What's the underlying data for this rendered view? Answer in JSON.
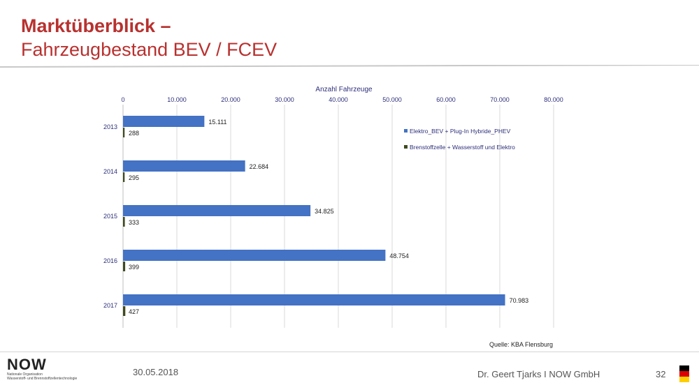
{
  "slide": {
    "title_line1": "Marktüberblick –",
    "title_line2": "Fahrzeugbestand BEV / FCEV",
    "date": "30.05.2018",
    "author": "Dr. Geert Tjarks I NOW GmbH",
    "page_number": "32",
    "logo_text": "NOW",
    "logo_subtitle_line1": "Nationale Organisation",
    "logo_subtitle_line2": "Wasserstoff- und Brennstoffzellentechnologie",
    "colors": {
      "title": "#b8312f",
      "series1": "#4472c4",
      "series2": "#3f4a1f"
    }
  },
  "chart_data": {
    "type": "bar",
    "orientation": "horizontal",
    "xlabel": "Anzahl Fahrzeuge",
    "xlim": [
      0,
      80000
    ],
    "x_ticks": [
      "0",
      "10.000",
      "20.000",
      "30.000",
      "40.000",
      "50.000",
      "60.000",
      "70.000",
      "80.000"
    ],
    "categories": [
      "2013",
      "2014",
      "2015",
      "2016",
      "2017"
    ],
    "series": [
      {
        "name": "Elektro_BEV + Plug-In Hybride_PHEV",
        "values": [
          15111,
          22684,
          34825,
          48754,
          70983
        ],
        "labels": [
          "15.111",
          "22.684",
          "34.825",
          "48.754",
          "70.983"
        ]
      },
      {
        "name": "Brenstoffzelle + Wasserstoff und Elektro",
        "values": [
          288,
          295,
          333,
          399,
          427
        ],
        "labels": [
          "288",
          "295",
          "333",
          "399",
          "427"
        ]
      }
    ],
    "legend_position": "right",
    "grid": true,
    "source": "Quelle: KBA Flensburg"
  }
}
